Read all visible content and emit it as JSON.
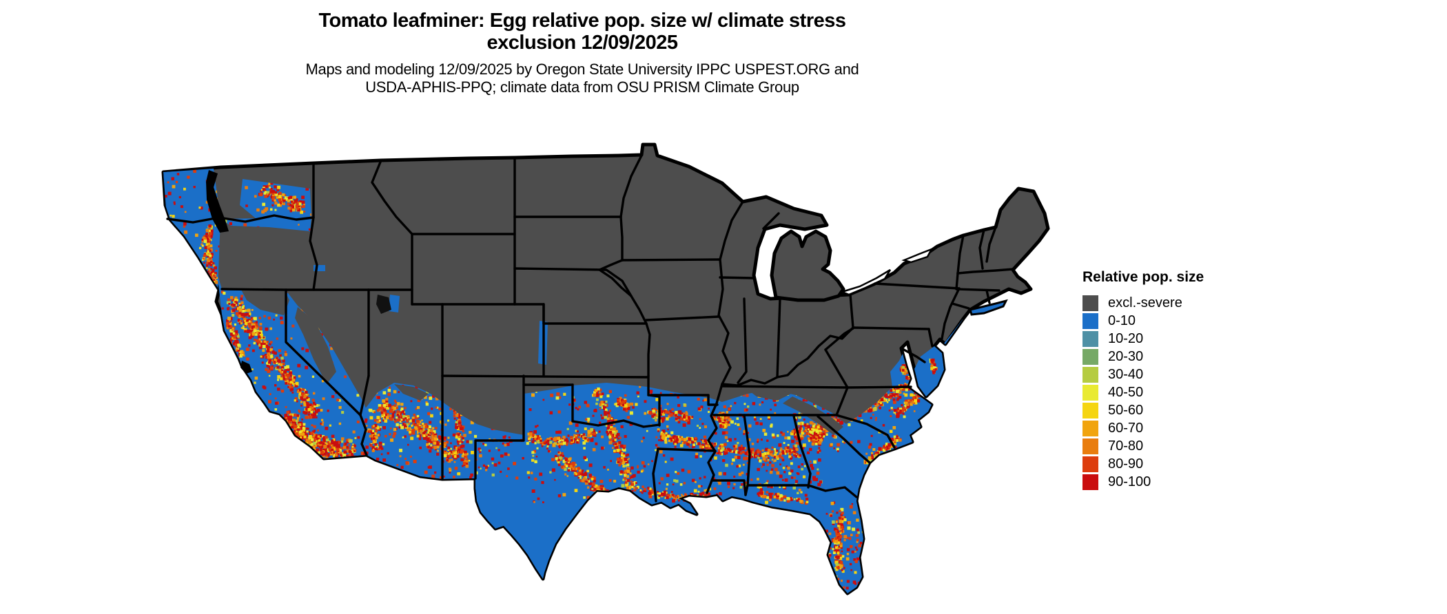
{
  "header": {
    "title_line1": "Tomato leafminer: Egg relative pop. size w/ climate stress",
    "title_line2": "exclusion 12/09/2025",
    "subtitle_line1": "Maps and modeling 12/09/2025 by Oregon State University IPPC USPEST.ORG and",
    "subtitle_line2": "USDA-APHIS-PPQ; climate data from OSU PRISM Climate Group"
  },
  "legend": {
    "title": "Relative pop. size",
    "entries": [
      {
        "label": "excl.-severe",
        "color": "#4d4d4d"
      },
      {
        "label": "0-10",
        "color": "#1b6fc8"
      },
      {
        "label": "10-20",
        "color": "#4e90a5"
      },
      {
        "label": "20-30",
        "color": "#76a966"
      },
      {
        "label": "30-40",
        "color": "#b5cc41"
      },
      {
        "label": "40-50",
        "color": "#e9ea33"
      },
      {
        "label": "50-60",
        "color": "#f5d511"
      },
      {
        "label": "60-70",
        "color": "#f1a40e"
      },
      {
        "label": "70-80",
        "color": "#e97d0e"
      },
      {
        "label": "80-90",
        "color": "#dd3d0d"
      },
      {
        "label": "90-100",
        "color": "#ca0d0e"
      }
    ]
  },
  "map": {
    "region": "contiguous United States",
    "excluded_color": "#4d4d4d",
    "suitable_color": "#1b6fc8",
    "border_color": "#000000",
    "water_color": "#ffffff"
  }
}
